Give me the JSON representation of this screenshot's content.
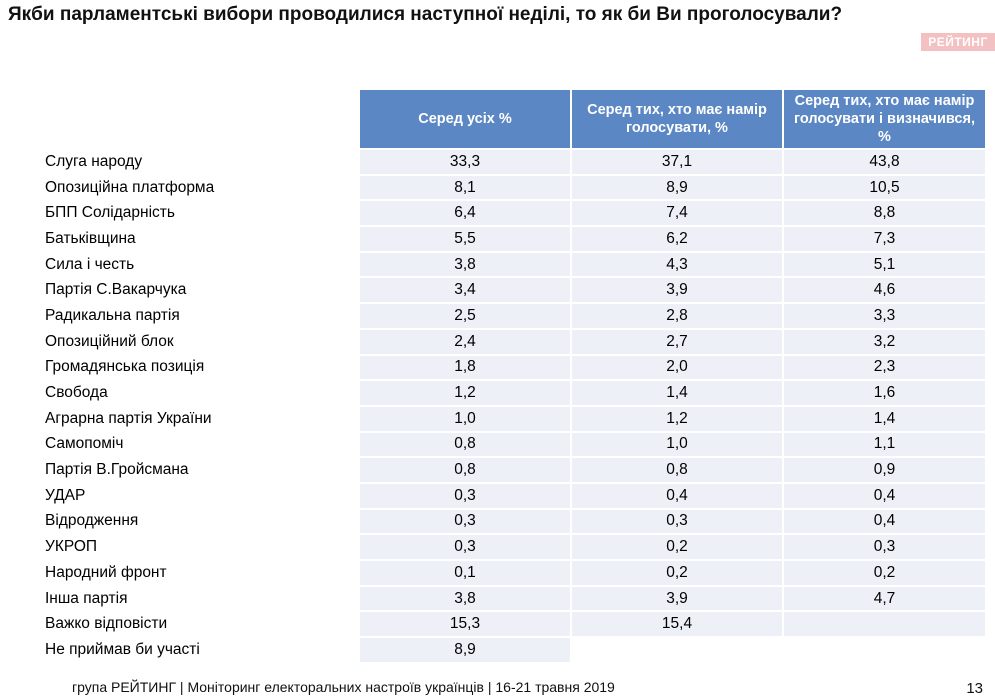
{
  "header": {
    "title": "Якби парламентські вибори проводилися наступної неділі, то як би Ви проголосували?",
    "brand": "РЕЙТИНГ"
  },
  "chart_data": {
    "type": "table",
    "columns": [
      "Серед усіх %",
      "Серед тих, хто має намір голосувати, %",
      "Серед тих, хто має намір голосувати і визначився, %"
    ],
    "rows": [
      {
        "label": "Слуга народу",
        "values": [
          "33,3",
          "37,1",
          "43,8"
        ]
      },
      {
        "label": "Опозиційна платформа",
        "values": [
          "8,1",
          "8,9",
          "10,5"
        ]
      },
      {
        "label": "БПП Солідарність",
        "values": [
          "6,4",
          "7,4",
          "8,8"
        ]
      },
      {
        "label": "Батьківщина",
        "values": [
          "5,5",
          "6,2",
          "7,3"
        ]
      },
      {
        "label": "Сила і честь",
        "values": [
          "3,8",
          "4,3",
          "5,1"
        ]
      },
      {
        "label": "Партія С.Вакарчука",
        "values": [
          "3,4",
          "3,9",
          "4,6"
        ]
      },
      {
        "label": "Радикальна партія",
        "values": [
          "2,5",
          "2,8",
          "3,3"
        ]
      },
      {
        "label": "Опозиційний блок",
        "values": [
          "2,4",
          "2,7",
          "3,2"
        ]
      },
      {
        "label": "Громадянська позиція",
        "values": [
          "1,8",
          "2,0",
          "2,3"
        ]
      },
      {
        "label": "Свобода",
        "values": [
          "1,2",
          "1,4",
          "1,6"
        ]
      },
      {
        "label": "Аграрна партія України",
        "values": [
          "1,0",
          "1,2",
          "1,4"
        ]
      },
      {
        "label": "Самопоміч",
        "values": [
          "0,8",
          "1,0",
          "1,1"
        ]
      },
      {
        "label": "Партія В.Гройсмана",
        "values": [
          "0,8",
          "0,8",
          "0,9"
        ]
      },
      {
        "label": "УДАР",
        "values": [
          "0,3",
          "0,4",
          "0,4"
        ]
      },
      {
        "label": "Відродження",
        "values": [
          "0,3",
          "0,3",
          "0,4"
        ]
      },
      {
        "label": "УКРОП",
        "values": [
          "0,3",
          "0,2",
          "0,3"
        ]
      },
      {
        "label": "Народний фронт",
        "values": [
          "0,1",
          "0,2",
          "0,2"
        ]
      },
      {
        "label": "Інша партія",
        "values": [
          "3,8",
          "3,9",
          "4,7"
        ]
      },
      {
        "label": "Важко відповісти",
        "values": [
          "15,3",
          "15,4",
          null
        ]
      },
      {
        "label": "Не приймав би участі",
        "values": [
          "8,9",
          null,
          null
        ]
      }
    ]
  },
  "footer": {
    "text": "група РЕЙТИНГ | Моніторинг електоральних настроїв українців | 16-21 травня  2019",
    "page_number": "13"
  },
  "colors": {
    "header_fill": "#5b87c4",
    "cell_fill": "#edf0f6",
    "brand_fill": "#f3c1c1"
  }
}
